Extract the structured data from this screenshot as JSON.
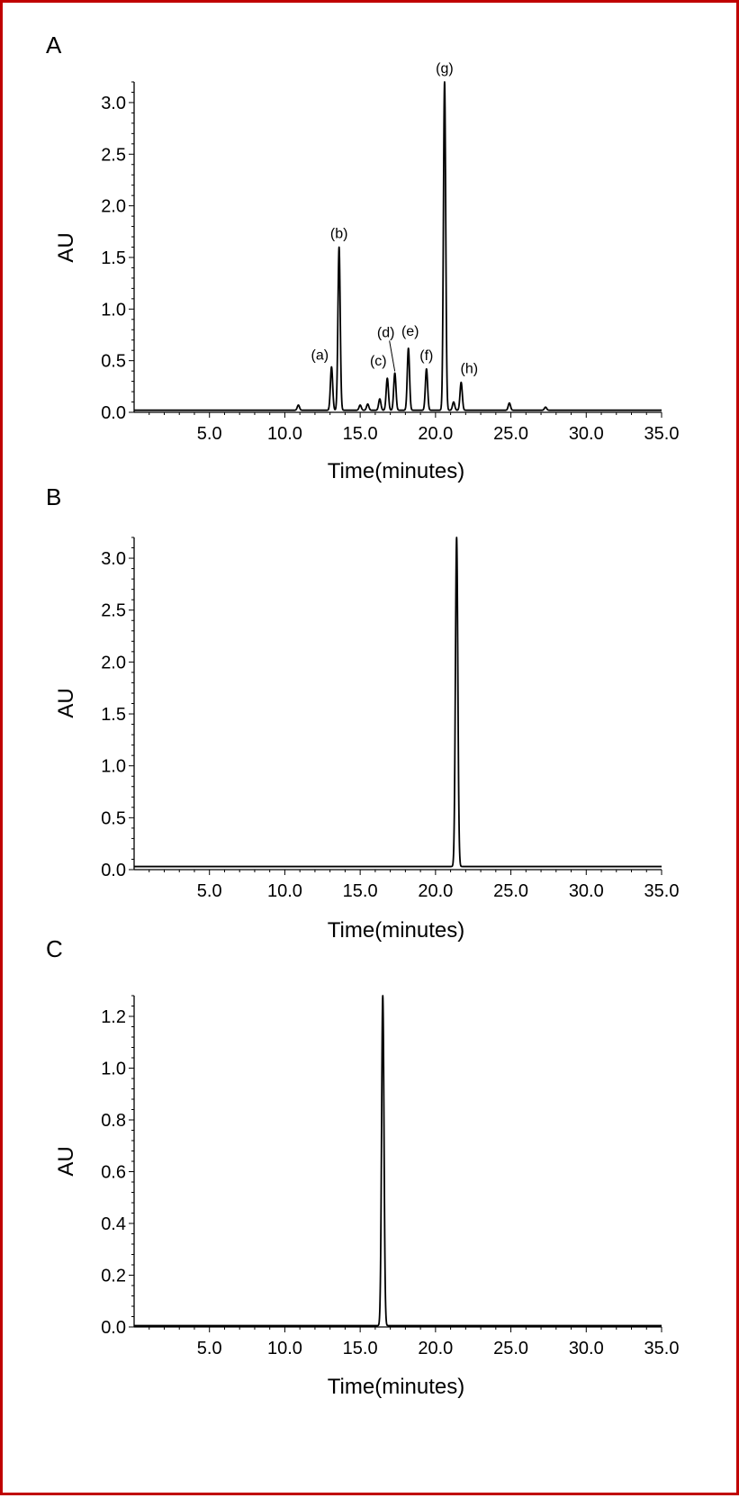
{
  "chart_data": [
    {
      "panel": "A",
      "type": "line",
      "xlabel": "Time(minutes)",
      "ylabel": "AU",
      "xlim": [
        0,
        35
      ],
      "ylim": [
        0,
        3.2
      ],
      "x_ticks": [
        "5.0",
        "10.0",
        "15.0",
        "20.0",
        "25.0",
        "30.0",
        "35.0"
      ],
      "y_ticks": [
        "0.0",
        "0.5",
        "1.0",
        "1.5",
        "2.0",
        "2.5",
        "3.0"
      ],
      "baseline": 0.02,
      "peaks": [
        {
          "label": "",
          "time": 10.9,
          "height": 0.07
        },
        {
          "label": "(a)",
          "time": 13.1,
          "height": 0.44
        },
        {
          "label": "(b)",
          "time": 13.6,
          "height": 1.6
        },
        {
          "label": "",
          "time": 15.0,
          "height": 0.07
        },
        {
          "label": "",
          "time": 15.5,
          "height": 0.08
        },
        {
          "label": "",
          "time": 16.3,
          "height": 0.13
        },
        {
          "label": "(c)",
          "time": 16.8,
          "height": 0.33
        },
        {
          "label": "(d)",
          "time": 17.3,
          "height": 0.38
        },
        {
          "label": "(e)",
          "time": 18.2,
          "height": 0.62
        },
        {
          "label": "(f)",
          "time": 19.4,
          "height": 0.42
        },
        {
          "label": "(g)",
          "time": 20.6,
          "height": 3.2
        },
        {
          "label": "",
          "time": 21.2,
          "height": 0.1
        },
        {
          "label": "(h)",
          "time": 21.7,
          "height": 0.29
        },
        {
          "label": "",
          "time": 24.9,
          "height": 0.09
        },
        {
          "label": "",
          "time": 27.3,
          "height": 0.05
        }
      ]
    },
    {
      "panel": "B",
      "type": "line",
      "xlabel": "Time(minutes)",
      "ylabel": "AU",
      "xlim": [
        0,
        35
      ],
      "ylim": [
        0,
        3.2
      ],
      "x_ticks": [
        "5.0",
        "10.0",
        "15.0",
        "20.0",
        "25.0",
        "30.0",
        "35.0"
      ],
      "y_ticks": [
        "0.0",
        "0.5",
        "1.0",
        "1.5",
        "2.0",
        "2.5",
        "3.0"
      ],
      "baseline": 0.03,
      "peaks": [
        {
          "label": "",
          "time": 21.4,
          "height": 3.2
        }
      ]
    },
    {
      "panel": "C",
      "type": "line",
      "xlabel": "Time(minutes)",
      "ylabel": "AU",
      "xlim": [
        0,
        35
      ],
      "ylim": [
        0,
        1.28
      ],
      "x_ticks": [
        "5.0",
        "10.0",
        "15.0",
        "20.0",
        "25.0",
        "30.0",
        "35.0"
      ],
      "y_ticks": [
        "0.0",
        "0.2",
        "0.4",
        "0.6",
        "0.8",
        "1.0",
        "1.2"
      ],
      "baseline": 0.005,
      "peaks": [
        {
          "label": "",
          "time": 16.5,
          "height": 1.28
        }
      ]
    }
  ]
}
